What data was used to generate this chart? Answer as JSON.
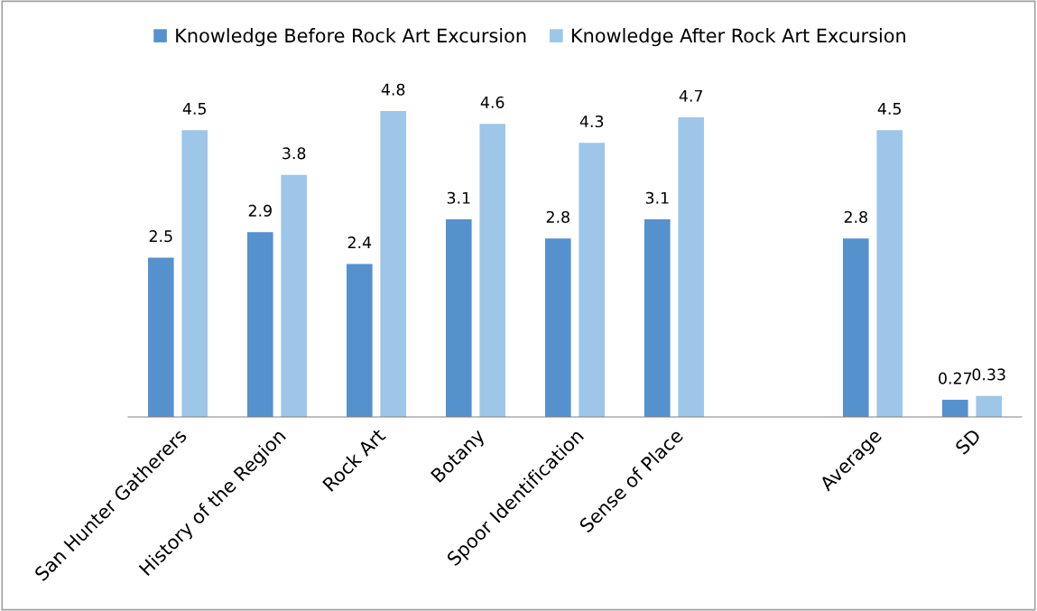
{
  "chart_data": {
    "type": "bar",
    "categories": [
      "San Hunter Gatherers",
      "History of the Region",
      "Rock Art",
      "Botany",
      "Spoor Identification",
      "Sense of Place",
      null,
      "Average",
      "SD"
    ],
    "series": [
      {
        "name": "Knowledge Before Rock Art Excursion",
        "color": "#5591cd",
        "values": [
          2.5,
          2.9,
          2.4,
          3.1,
          2.8,
          3.1,
          null,
          2.8,
          0.27
        ]
      },
      {
        "name": "Knowledge After Rock Art Excursion",
        "color": "#9dc6e8",
        "values": [
          4.5,
          3.8,
          4.8,
          4.6,
          4.3,
          4.7,
          null,
          4.5,
          0.33
        ]
      }
    ],
    "data_labels": true,
    "legend": "top",
    "grid": false
  }
}
